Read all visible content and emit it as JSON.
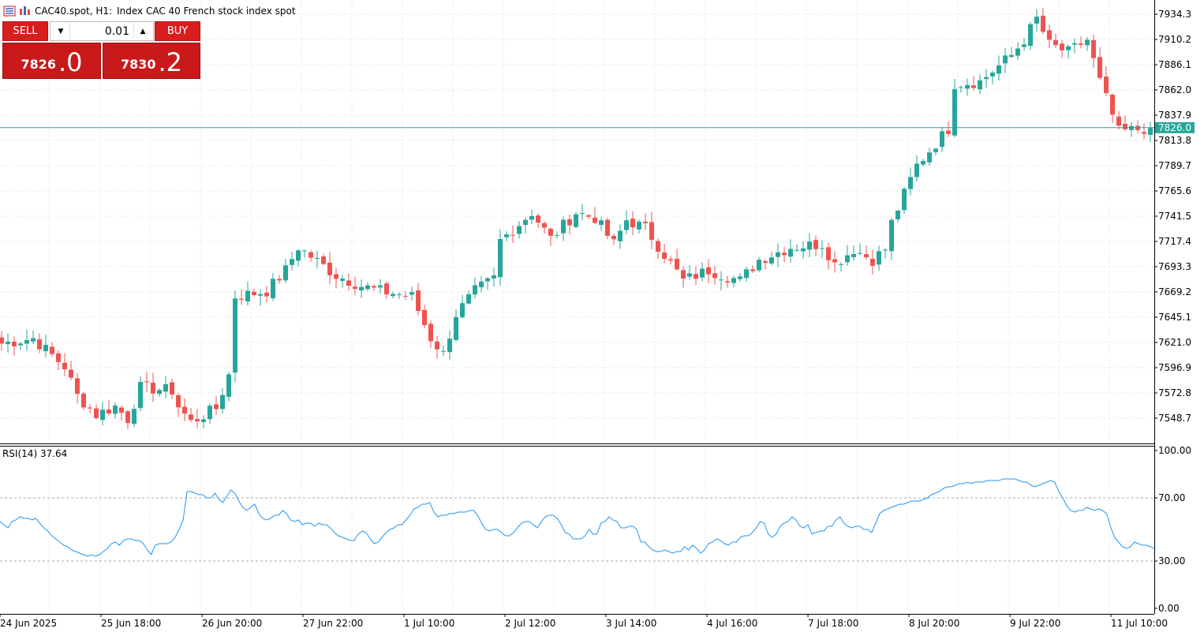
{
  "header": {
    "symbol": "CAC40.spot, H1:",
    "description": "Index CAC 40 French stock index spot"
  },
  "trade_panel": {
    "sell_label": "SELL",
    "buy_label": "BUY",
    "lot": "0.01",
    "sell_price_main": "7826",
    "sell_price_big": ".0",
    "buy_price_main": "7830",
    "buy_price_big": ".2"
  },
  "indicator": {
    "label": "RSI(14) 37.64"
  },
  "colors": {
    "bull": "#26a69a",
    "bear": "#ef5350",
    "rsi": "#2196f3",
    "current_line": "#26a69a"
  },
  "chart_data": [
    {
      "type": "candlestick",
      "title": "CAC40.spot, H1:  Index CAC 40 French stock index spot",
      "xlabel": "",
      "ylabel": "",
      "ylim": [
        7530,
        7945
      ],
      "yticks": [
        "7934.3",
        "7910.2",
        "7886.1",
        "7862.0",
        "7837.9",
        "7813.8",
        "7789.7",
        "7765.6",
        "7741.5",
        "7717.4",
        "7693.3",
        "7669.2",
        "7645.1",
        "7621.0",
        "7596.9",
        "7572.8",
        "7548.7"
      ],
      "current_price": "7826.0",
      "x_labels": [
        "24 Jun 2025",
        "25 Jun 18:00",
        "26 Jun 20:00",
        "27 Jun 22:00",
        "1 Jul 10:00",
        "2 Jul 12:00",
        "3 Jul 14:00",
        "4 Jul 16:00",
        "7 Jul 18:00",
        "8 Jul 20:00",
        "9 Jul 22:00",
        "11 Jul 10:00"
      ],
      "grid": true,
      "approx_close_path": [
        [
          0,
          7620
        ],
        [
          5,
          7625
        ],
        [
          10,
          7598
        ],
        [
          12,
          7570
        ],
        [
          15,
          7552
        ],
        [
          18,
          7560
        ],
        [
          20,
          7548
        ],
        [
          22,
          7578
        ],
        [
          27,
          7575
        ],
        [
          28,
          7560
        ],
        [
          30,
          7545
        ],
        [
          34,
          7558
        ],
        [
          36,
          7590
        ],
        [
          37,
          7665
        ],
        [
          42,
          7670
        ],
        [
          45,
          7690
        ],
        [
          47,
          7712
        ],
        [
          53,
          7685
        ],
        [
          57,
          7675
        ],
        [
          60,
          7670
        ],
        [
          65,
          7665
        ],
        [
          68,
          7625
        ],
        [
          70,
          7610
        ],
        [
          72,
          7648
        ],
        [
          75,
          7670
        ],
        [
          78,
          7682
        ],
        [
          79,
          7718
        ],
        [
          84,
          7745
        ],
        [
          87,
          7720
        ],
        [
          91,
          7745
        ],
        [
          94,
          7740
        ],
        [
          97,
          7715
        ],
        [
          99,
          7738
        ],
        [
          102,
          7730
        ],
        [
          105,
          7705
        ],
        [
          108,
          7680
        ],
        [
          112,
          7690
        ],
        [
          117,
          7680
        ],
        [
          120,
          7700
        ],
        [
          125,
          7712
        ],
        [
          130,
          7715
        ],
        [
          132,
          7696
        ],
        [
          135,
          7710
        ],
        [
          138,
          7700
        ],
        [
          140,
          7710
        ],
        [
          141,
          7735
        ],
        [
          145,
          7790
        ],
        [
          150,
          7825
        ],
        [
          151,
          7868
        ],
        [
          155,
          7870
        ],
        [
          160,
          7895
        ],
        [
          162,
          7910
        ],
        [
          164,
          7930
        ],
        [
          166,
          7905
        ],
        [
          169,
          7898
        ],
        [
          172,
          7910
        ],
        [
          174,
          7870
        ],
        [
          177,
          7822
        ],
        [
          182,
          7826
        ]
      ]
    },
    {
      "type": "line",
      "title": "RSI(14) 37.64",
      "xlabel": "",
      "ylabel": "",
      "ylim": [
        0,
        100
      ],
      "yticks": [
        "100.00",
        "70.00",
        "30.00",
        "0.00"
      ],
      "levels": [
        70,
        30
      ],
      "series": [
        {
          "name": "RSI(14)",
          "values": [
            55,
            53,
            51,
            55,
            56,
            58,
            57,
            57,
            56,
            57,
            54,
            51,
            49,
            46,
            44,
            42,
            40,
            39,
            37,
            36,
            35,
            34,
            33,
            34,
            33,
            34,
            36,
            38,
            41,
            42,
            40,
            43,
            44,
            44,
            43,
            43,
            41,
            37,
            34,
            40,
            41,
            41,
            41,
            42,
            45,
            50,
            56,
            74,
            74,
            73,
            72,
            72,
            70,
            70,
            73,
            69,
            67,
            71,
            75,
            73,
            68,
            64,
            62,
            64,
            66,
            60,
            57,
            56,
            57,
            59,
            59,
            62,
            60,
            56,
            55,
            56,
            53,
            54,
            54,
            52,
            54,
            53,
            53,
            51,
            48,
            46,
            45,
            44,
            43,
            43,
            47,
            49,
            48,
            44,
            41,
            42,
            45,
            48,
            50,
            51,
            53,
            53,
            56,
            59,
            63,
            64,
            66,
            66,
            67,
            61,
            58,
            59,
            59,
            60,
            60,
            61,
            61,
            61,
            62,
            62,
            59,
            54,
            50,
            49,
            50,
            50,
            48,
            46,
            46,
            48,
            51,
            54,
            55,
            55,
            53,
            51,
            55,
            58,
            59,
            59,
            57,
            53,
            48,
            47,
            44,
            44,
            44,
            46,
            50,
            47,
            47,
            54,
            55,
            58,
            56,
            55,
            51,
            51,
            52,
            52,
            50,
            42,
            42,
            39,
            37,
            36,
            36,
            37,
            36,
            35,
            36,
            36,
            39,
            37,
            40,
            38,
            35,
            37,
            41,
            42,
            44,
            43,
            41,
            40,
            42,
            42,
            45,
            46,
            46,
            48,
            51,
            55,
            54,
            47,
            45,
            47,
            52,
            54,
            55,
            58,
            56,
            52,
            51,
            53,
            47,
            48,
            49,
            49,
            52,
            52,
            56,
            58,
            54,
            52,
            51,
            52,
            52,
            50,
            50,
            48,
            54,
            60,
            62,
            63,
            64,
            65,
            66,
            66,
            67,
            68,
            68,
            68,
            69,
            70,
            72,
            73,
            74,
            76,
            77,
            77,
            78,
            79,
            79,
            80,
            79,
            80,
            80,
            80,
            81,
            81,
            81,
            81,
            82,
            82,
            82,
            82,
            81,
            80,
            80,
            78,
            77,
            78,
            79,
            80,
            81,
            80,
            74,
            70,
            65,
            62,
            61,
            62,
            62,
            64,
            63,
            62,
            63,
            62,
            60,
            52,
            45,
            42,
            39,
            38,
            39,
            42,
            41,
            40,
            40,
            39,
            38
          ]
        }
      ]
    }
  ]
}
